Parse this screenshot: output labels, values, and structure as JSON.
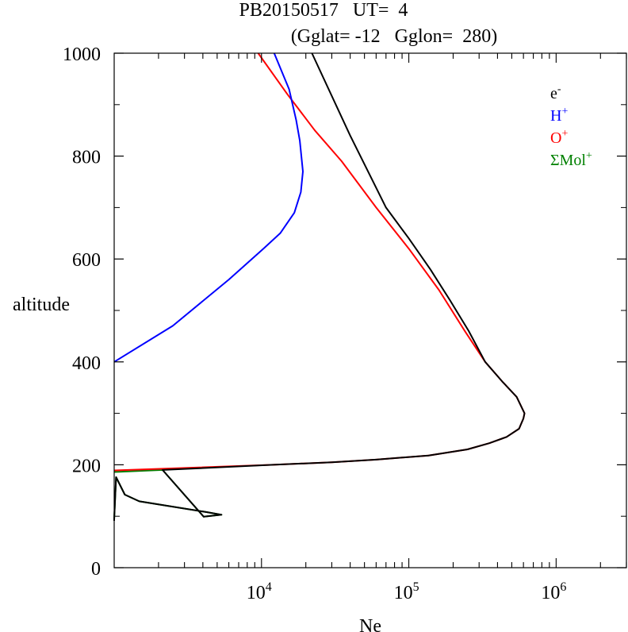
{
  "chart_data": {
    "type": "line",
    "title_line1": "PB20150517   UT=  4",
    "title_line2": "(Gglat= -12   Gglon=  280)",
    "xlabel": "Ne",
    "ylabel": "altitude",
    "x_scale": "log",
    "xlim": [
      1000,
      3000000
    ],
    "ylim": [
      0,
      1000
    ],
    "x_tick_labels": [
      {
        "value": 10000,
        "base": "10",
        "exp": "4"
      },
      {
        "value": 100000,
        "base": "10",
        "exp": "5"
      },
      {
        "value": 1000000,
        "base": "10",
        "exp": "6"
      }
    ],
    "y_ticks": [
      0,
      200,
      400,
      600,
      800,
      1000
    ],
    "y_tick_labels": [
      "0",
      "200",
      "400",
      "600",
      "800",
      "1000"
    ],
    "grid": false,
    "legend_position": "top-right",
    "series": [
      {
        "name": "e",
        "sup": "-",
        "color": "#000000",
        "x": [
          1000,
          1000,
          1030,
          1180,
          1480,
          4250,
          5350,
          4050,
          2130,
          12000,
          30000,
          60000,
          136000,
          250000,
          352000,
          460000,
          560000,
          600000,
          610000,
          540000,
          430000,
          330000,
          255000,
          190000,
          140000,
          100000,
          70000,
          40000,
          22000
        ],
        "y": [
          91,
          94,
          176,
          142,
          129,
          108,
          103,
          99,
          190,
          200,
          205,
          210,
          218,
          230,
          242,
          254,
          270,
          290,
          300,
          332,
          362,
          400,
          460,
          520,
          580,
          640,
          700,
          840,
          1000
        ]
      },
      {
        "name": "H",
        "sup": "+",
        "color": "#0000ff",
        "x": [
          1000,
          2500,
          6000,
          10300,
          13400,
          16700,
          18500,
          19100,
          18200,
          17200,
          15400,
          12200
        ],
        "y": [
          400,
          470,
          560,
          620,
          650,
          690,
          730,
          770,
          830,
          870,
          930,
          1000
        ]
      },
      {
        "name": "O",
        "sup": "+",
        "color": "#ff0000",
        "x": [
          1000,
          12000,
          30000,
          60000,
          136000,
          250000,
          352000,
          460000,
          560000,
          600000,
          610000,
          540000,
          430000,
          330000,
          240000,
          160000,
          100000,
          60000,
          35000,
          23000,
          15000,
          9500
        ],
        "y": [
          189,
          200,
          205,
          210,
          218,
          230,
          242,
          254,
          270,
          290,
          300,
          332,
          362,
          400,
          460,
          540,
          620,
          700,
          790,
          850,
          920,
          1000
        ]
      },
      {
        "name": "ΣMol",
        "sup": "+",
        "color": "#008000",
        "x": [
          1000,
          1000,
          1030,
          1180,
          1480,
          4250,
          5350,
          4050,
          2130,
          1000
        ],
        "y": [
          91,
          94,
          176,
          142,
          129,
          108,
          103,
          99,
          190,
          186
        ]
      }
    ]
  }
}
